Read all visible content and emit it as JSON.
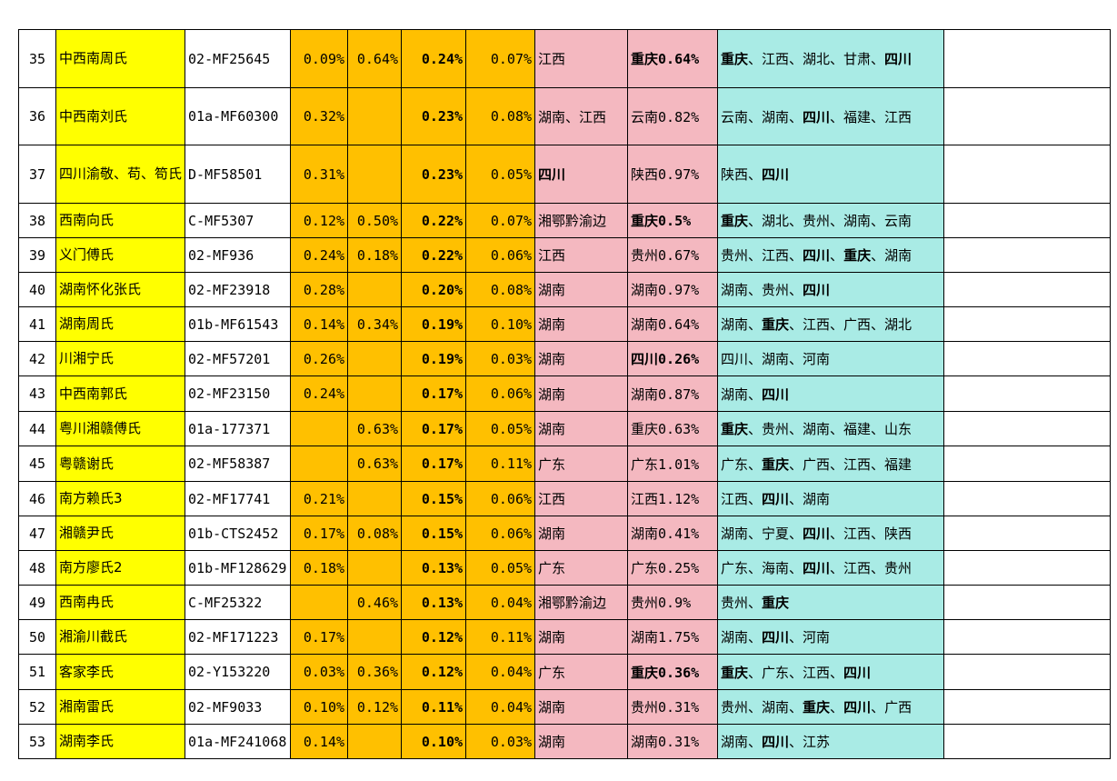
{
  "rows": [
    {
      "idx": "35",
      "name": "中西南周氏",
      "code": "02-MF25645",
      "a": "0.09%",
      "b": "0.64%",
      "c": "0.24%",
      "d": "0.07%",
      "e": "江西",
      "e_bold": false,
      "f": "重庆0.64%",
      "f_bold": true,
      "g": [
        {
          "t": "重庆",
          "b": true
        },
        {
          "t": "、江西、湖北、甘肃、",
          "b": false
        },
        {
          "t": "四川",
          "b": true
        }
      ]
    },
    {
      "idx": "36",
      "name": "中西南刘氏",
      "code": "01a-MF60300",
      "a": "0.32%",
      "b": "",
      "c": "0.23%",
      "d": "0.08%",
      "e": "湖南、江西",
      "e_bold": false,
      "f": "云南0.82%",
      "f_bold": false,
      "g": [
        {
          "t": "云南、湖南、",
          "b": false
        },
        {
          "t": "四川",
          "b": true
        },
        {
          "t": "、福建、江西",
          "b": false
        }
      ]
    },
    {
      "idx": "37",
      "name": "四川渝敬、苟、笱氏",
      "code": "D-MF58501",
      "a": "0.31%",
      "b": "",
      "c": "0.23%",
      "d": "0.05%",
      "e": "四川",
      "e_bold": true,
      "f": "陕西0.97%",
      "f_bold": false,
      "g": [
        {
          "t": "陕西、",
          "b": false
        },
        {
          "t": "四川",
          "b": true
        }
      ]
    },
    {
      "idx": "38",
      "name": "西南向氏",
      "code": "C-MF5307",
      "a": "0.12%",
      "b": "0.50%",
      "c": "0.22%",
      "d": "0.07%",
      "e": "湘鄂黔渝边",
      "e_bold": false,
      "f": "重庆0.5%",
      "f_bold": true,
      "g": [
        {
          "t": "重庆",
          "b": true
        },
        {
          "t": "、湖北、贵州、湖南、云南",
          "b": false
        }
      ]
    },
    {
      "idx": "39",
      "name": "义门傅氏",
      "code": "02-MF936",
      "a": "0.24%",
      "b": "0.18%",
      "c": "0.22%",
      "d": "0.06%",
      "e": "江西",
      "e_bold": false,
      "f": "贵州0.67%",
      "f_bold": false,
      "g": [
        {
          "t": "贵州、江西、",
          "b": false
        },
        {
          "t": "四川",
          "b": true
        },
        {
          "t": "、",
          "b": false
        },
        {
          "t": "重庆",
          "b": true
        },
        {
          "t": "、湖南",
          "b": false
        }
      ]
    },
    {
      "idx": "40",
      "name": "湖南怀化张氏",
      "code": "02-MF23918",
      "a": "0.28%",
      "b": "",
      "c": "0.20%",
      "d": "0.08%",
      "e": "湖南",
      "e_bold": false,
      "f": "湖南0.97%",
      "f_bold": false,
      "g": [
        {
          "t": "湖南、贵州、",
          "b": false
        },
        {
          "t": "四川",
          "b": true
        }
      ]
    },
    {
      "idx": "41",
      "name": "湖南周氏",
      "code": "01b-MF61543",
      "a": "0.14%",
      "b": "0.34%",
      "c": "0.19%",
      "d": "0.10%",
      "e": "湖南",
      "e_bold": false,
      "f": "湖南0.64%",
      "f_bold": false,
      "g": [
        {
          "t": "湖南、",
          "b": false
        },
        {
          "t": "重庆",
          "b": true
        },
        {
          "t": "、江西、广西、湖北",
          "b": false
        }
      ]
    },
    {
      "idx": "42",
      "name": "川湘宁氏",
      "code": "02-MF57201",
      "a": "0.26%",
      "b": "",
      "c": "0.19%",
      "d": "0.03%",
      "e": "湖南",
      "e_bold": false,
      "f": "四川0.26%",
      "f_bold": true,
      "g": [
        {
          "t": "四川、湖南、河南",
          "b": false
        }
      ]
    },
    {
      "idx": "43",
      "name": "中西南郭氏",
      "code": "02-MF23150",
      "a": "0.24%",
      "b": "",
      "c": "0.17%",
      "d": "0.06%",
      "e": "湖南",
      "e_bold": false,
      "f": "湖南0.87%",
      "f_bold": false,
      "g": [
        {
          "t": "湖南、",
          "b": false
        },
        {
          "t": "四川",
          "b": true
        }
      ]
    },
    {
      "idx": "44",
      "name": "粤川湘赣傅氏",
      "code": "01a-177371",
      "a": "",
      "b": "0.63%",
      "c": "0.17%",
      "d": "0.05%",
      "e": "湖南",
      "e_bold": false,
      "f": "重庆0.63%",
      "f_bold": false,
      "g": [
        {
          "t": "重庆",
          "b": true
        },
        {
          "t": "、贵州、湖南、福建、山东",
          "b": false
        }
      ]
    },
    {
      "idx": "45",
      "name": "粤赣谢氏",
      "code": "02-MF58387",
      "a": "",
      "b": "0.63%",
      "c": "0.17%",
      "d": "0.11%",
      "e": "广东",
      "e_bold": false,
      "f": "广东1.01%",
      "f_bold": false,
      "g": [
        {
          "t": "广东、",
          "b": false
        },
        {
          "t": "重庆",
          "b": true
        },
        {
          "t": "、广西、江西、福建",
          "b": false
        }
      ]
    },
    {
      "idx": "46",
      "name": "南方赖氏3",
      "code": "02-MF17741",
      "a": "0.21%",
      "b": "",
      "c": "0.15%",
      "d": "0.06%",
      "e": "江西",
      "e_bold": false,
      "f": "江西1.12%",
      "f_bold": false,
      "g": [
        {
          "t": "江西、",
          "b": false
        },
        {
          "t": "四川",
          "b": true
        },
        {
          "t": "、湖南",
          "b": false
        }
      ]
    },
    {
      "idx": "47",
      "name": "湘赣尹氏",
      "code": "01b-CTS2452",
      "a": "0.17%",
      "b": "0.08%",
      "c": "0.15%",
      "d": "0.06%",
      "e": "湖南",
      "e_bold": false,
      "f": "湖南0.41%",
      "f_bold": false,
      "g": [
        {
          "t": "湖南、宁夏、",
          "b": false
        },
        {
          "t": "四川",
          "b": true
        },
        {
          "t": "、江西、陕西",
          "b": false
        }
      ]
    },
    {
      "idx": "48",
      "name": "南方廖氏2",
      "code": "01b-MF128629",
      "a": "0.18%",
      "b": "",
      "c": "0.13%",
      "d": "0.05%",
      "e": "广东",
      "e_bold": false,
      "f": "广东0.25%",
      "f_bold": false,
      "g": [
        {
          "t": "广东、海南、",
          "b": false
        },
        {
          "t": "四川",
          "b": true
        },
        {
          "t": "、江西、贵州",
          "b": false
        }
      ]
    },
    {
      "idx": "49",
      "name": "西南冉氏",
      "code": "C-MF25322",
      "a": "",
      "b": "0.46%",
      "c": "0.13%",
      "d": "0.04%",
      "e": "湘鄂黔渝边",
      "e_bold": false,
      "f": "贵州0.9%",
      "f_bold": false,
      "g": [
        {
          "t": "贵州、",
          "b": false
        },
        {
          "t": "重庆",
          "b": true
        }
      ]
    },
    {
      "idx": "50",
      "name": "湘渝川截氏",
      "code": "02-MF171223",
      "a": "0.17%",
      "b": "",
      "c": "0.12%",
      "d": "0.11%",
      "e": "湖南",
      "e_bold": false,
      "f": "湖南1.75%",
      "f_bold": false,
      "g": [
        {
          "t": "湖南、",
          "b": false
        },
        {
          "t": "四川",
          "b": true
        },
        {
          "t": "、河南",
          "b": false
        }
      ]
    },
    {
      "idx": "51",
      "name": "客家李氏",
      "code": "02-Y153220",
      "a": "0.03%",
      "b": "0.36%",
      "c": "0.12%",
      "d": "0.04%",
      "e": "广东",
      "e_bold": false,
      "f": "重庆0.36%",
      "f_bold": true,
      "g": [
        {
          "t": "重庆",
          "b": true
        },
        {
          "t": "、广东、江西、",
          "b": false
        },
        {
          "t": "四川",
          "b": true
        }
      ]
    },
    {
      "idx": "52",
      "name": "湘南雷氏",
      "code": "02-MF9033",
      "a": "0.10%",
      "b": "0.12%",
      "c": "0.11%",
      "d": "0.04%",
      "e": "湖南",
      "e_bold": false,
      "f": "贵州0.31%",
      "f_bold": false,
      "g": [
        {
          "t": "贵州、湖南、",
          "b": false
        },
        {
          "t": "重庆",
          "b": true
        },
        {
          "t": "、",
          "b": false
        },
        {
          "t": "四川",
          "b": true
        },
        {
          "t": "、广西",
          "b": false
        }
      ]
    },
    {
      "idx": "53",
      "name": "湖南李氏",
      "code": "01a-MF241068",
      "a": "0.14%",
      "b": "",
      "c": "0.10%",
      "d": "0.03%",
      "e": "湖南",
      "e_bold": false,
      "f": "湖南0.31%",
      "f_bold": false,
      "g": [
        {
          "t": "湖南、",
          "b": false
        },
        {
          "t": "四川",
          "b": true
        },
        {
          "t": "、江苏",
          "b": false
        }
      ]
    }
  ]
}
